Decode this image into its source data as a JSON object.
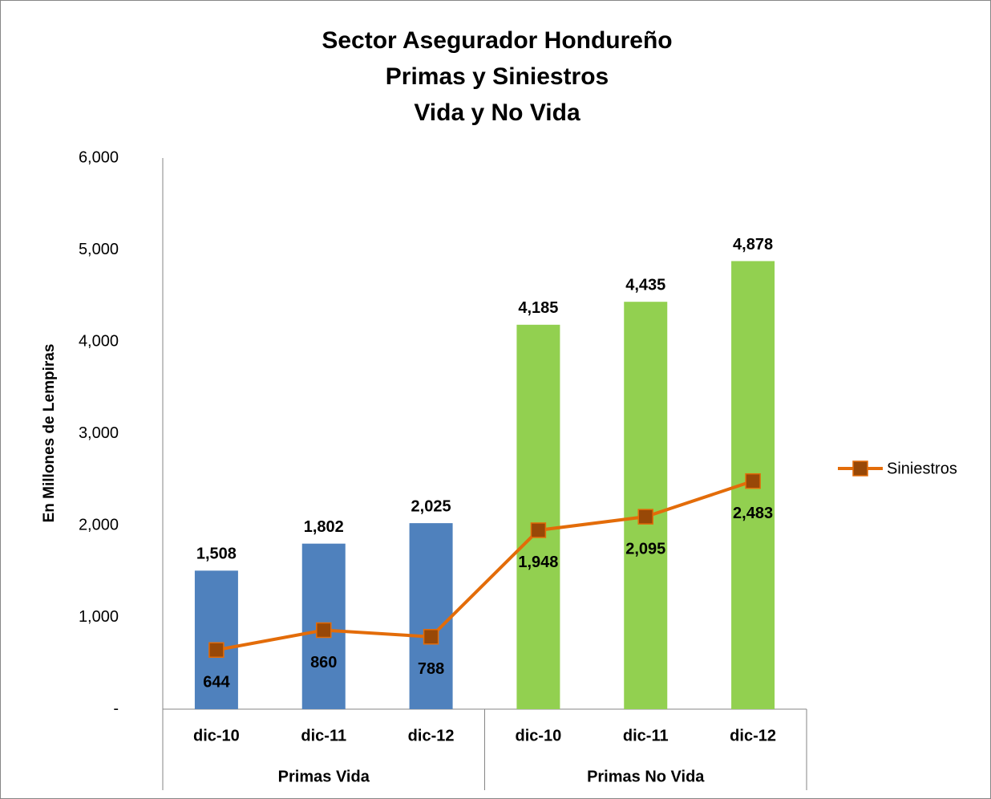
{
  "chart_data": {
    "type": "bar",
    "title": [
      "Sector Asegurador Hondureño",
      "Primas y Siniestros",
      "Vida y No Vida"
    ],
    "y_label": "En Millones de Lempiras",
    "categories": [
      "dic-10",
      "dic-11",
      "dic-12",
      "dic-10",
      "dic-11",
      "dic-12"
    ],
    "groups": [
      "Primas Vida",
      "Primas No Vida"
    ],
    "series": [
      {
        "type": "bar",
        "colors": [
          "#4f81bd",
          "#4f81bd",
          "#4f81bd",
          "#92d050",
          "#92d050",
          "#92d050"
        ],
        "values": [
          1508,
          1802,
          2025,
          4185,
          4435,
          4878
        ],
        "value_labels": [
          "1,508",
          "1,802",
          "2,025",
          "4,185",
          "4,435",
          "4,878"
        ]
      },
      {
        "type": "line",
        "name": "Siniestros",
        "color": "#e36c09",
        "marker_color": "#984807",
        "values": [
          644,
          860,
          788,
          1948,
          2095,
          2483
        ],
        "value_labels": [
          "644",
          "860",
          "788",
          "1,948",
          "2,095",
          "2,483"
        ]
      }
    ],
    "ylim": [
      0,
      6000
    ],
    "yticks": [
      {
        "value": 0,
        "label": "-"
      },
      {
        "value": 1000,
        "label": "1,000"
      },
      {
        "value": 2000,
        "label": "2,000"
      },
      {
        "value": 3000,
        "label": "3,000"
      },
      {
        "value": 4000,
        "label": "4,000"
      },
      {
        "value": 5000,
        "label": "5,000"
      },
      {
        "value": 6000,
        "label": "6,000"
      }
    ],
    "grid": false,
    "legend": "right"
  }
}
